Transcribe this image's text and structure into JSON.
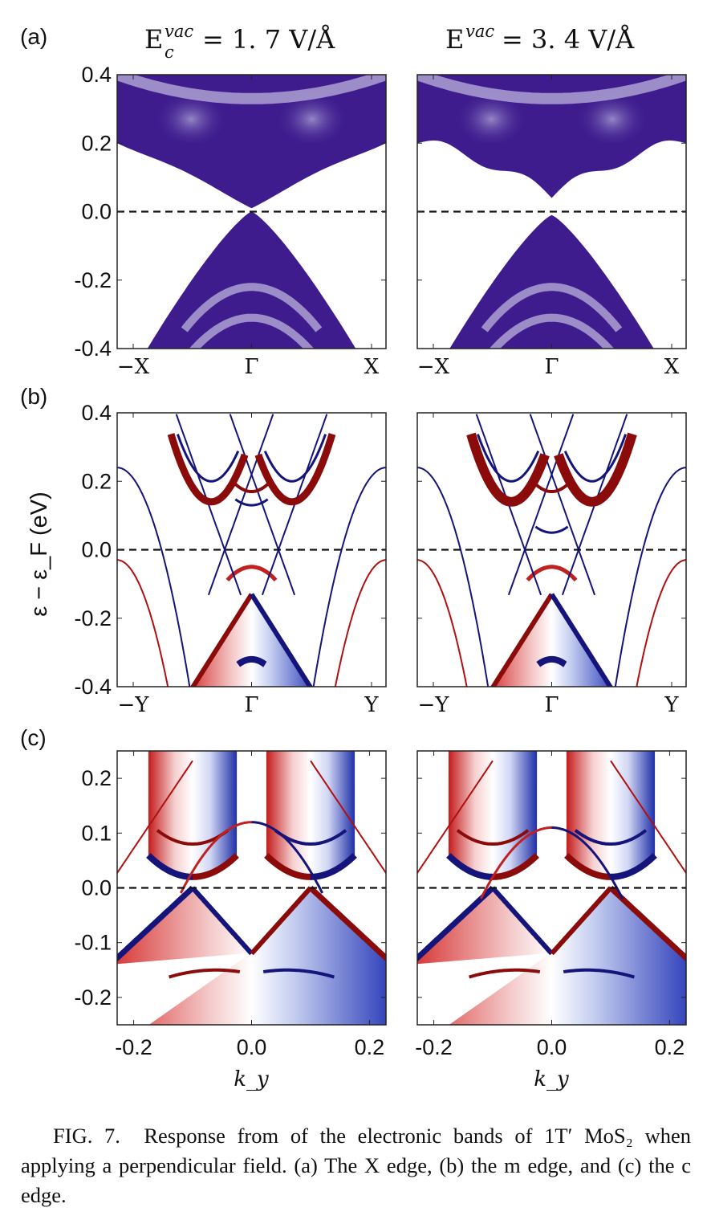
{
  "panel_labels": [
    "(a)",
    "(b)",
    "(c)"
  ],
  "column_titles": [
    {
      "base": "E",
      "sup": "vac",
      "sub": "c",
      "rest": "= 1. 7 V/Å"
    },
    {
      "base": "E",
      "sup": "vac",
      "sub": "",
      "rest": "= 3. 4 V/Å"
    }
  ],
  "y_axis_label": "ε − ε_F (eV)",
  "x_axis_label": "k_y",
  "caption": {
    "prefix": "FIG. 7.",
    "text": "Response from of the electronic bands of 1T′ MoS₂ when applying a perpendicular field. (a) The X edge, (b) the m edge, and (c) the c edge."
  },
  "colors": {
    "purple": "#3e1c8e",
    "lavender": "#b4aad8",
    "red": "#8b0a0a",
    "blue": "#14147a"
  },
  "chart_data": [
    {
      "type": "heatmap",
      "panel": "a",
      "field": "1.7 V/Å",
      "ylim": [
        -0.4,
        0.4
      ],
      "yticks": [
        "0.4",
        "0.2",
        "0.0",
        "-0.2",
        "-0.4"
      ],
      "yvals": [
        0.4,
        0.2,
        0.0,
        -0.2,
        -0.4
      ],
      "xticks": [
        "−X",
        "Γ",
        "X"
      ],
      "fermi_line": 0.0,
      "conduction_min": 0.01,
      "valence_max": 0.0
    },
    {
      "type": "heatmap",
      "panel": "a",
      "field": "3.4 V/Å",
      "ylim": [
        -0.4,
        0.4
      ],
      "xticks": [
        "−X",
        "Γ",
        "X"
      ],
      "fermi_line": 0.0,
      "conduction_min": 0.04,
      "valence_max": -0.01
    },
    {
      "type": "heatmap",
      "panel": "b",
      "field": "1.7 V/Å",
      "ylim": [
        -0.4,
        0.4
      ],
      "yticks": [
        "0.4",
        "0.2",
        "0.0",
        "-0.2",
        "-0.4"
      ],
      "yvals": [
        0.4,
        0.2,
        0.0,
        -0.2,
        -0.4
      ],
      "xticks": [
        "−Y",
        "Γ",
        "Y"
      ],
      "fermi_line": 0.0
    },
    {
      "type": "heatmap",
      "panel": "b",
      "field": "3.4 V/Å",
      "ylim": [
        -0.4,
        0.4
      ],
      "xticks": [
        "−Y",
        "Γ",
        "Y"
      ],
      "fermi_line": 0.0
    },
    {
      "type": "heatmap",
      "panel": "c",
      "field": "1.7 V/Å",
      "ylim": [
        -0.25,
        0.25
      ],
      "xlim": [
        -0.228,
        0.228
      ],
      "yticks": [
        "0.2",
        "0.1",
        "0.0",
        "-0.1",
        "-0.2"
      ],
      "yvals": [
        0.2,
        0.1,
        0.0,
        -0.1,
        -0.2
      ],
      "xticks": [
        "-0.2",
        "0.0",
        "0.2"
      ],
      "xvals": [
        -0.2,
        0.0,
        0.2
      ],
      "fermi_line": 0.0
    },
    {
      "type": "heatmap",
      "panel": "c",
      "field": "3.4 V/Å",
      "ylim": [
        -0.25,
        0.25
      ],
      "xlim": [
        -0.228,
        0.228
      ],
      "xticks": [
        "-0.2",
        "0.0",
        "0.2"
      ],
      "xvals": [
        -0.2,
        0.0,
        0.2
      ],
      "fermi_line": 0.0
    }
  ]
}
